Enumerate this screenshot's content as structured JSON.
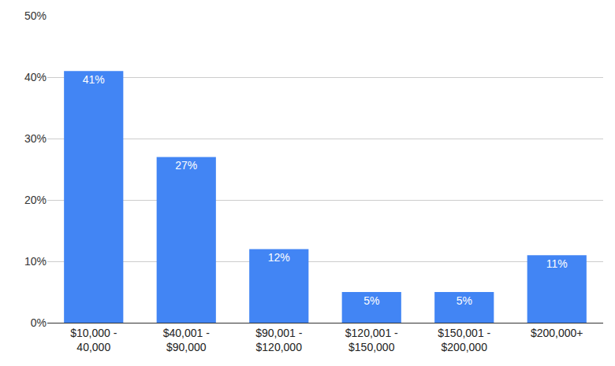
{
  "chart_data": {
    "type": "bar",
    "categories": [
      "$10,000 - 40,000",
      "$40,001 - $90,000",
      "$90,001 - $120,000",
      "$120,001 - $150,000",
      "$150,001 - $200,000",
      "$200,000+"
    ],
    "values": [
      41,
      27,
      12,
      5,
      5,
      11
    ],
    "value_labels": [
      "41%",
      "27%",
      "12%",
      "5%",
      "5%",
      "11%"
    ],
    "data_labels": true,
    "color": "#4285f4",
    "ylim": [
      0,
      50
    ],
    "yticks": [
      {
        "value": 0,
        "label": "0%"
      },
      {
        "value": 10,
        "label": "10%"
      },
      {
        "value": 20,
        "label": "20%"
      },
      {
        "value": 30,
        "label": "30%"
      },
      {
        "value": 40,
        "label": "40%"
      },
      {
        "value": 50,
        "label": "50%"
      }
    ],
    "grid": true
  }
}
